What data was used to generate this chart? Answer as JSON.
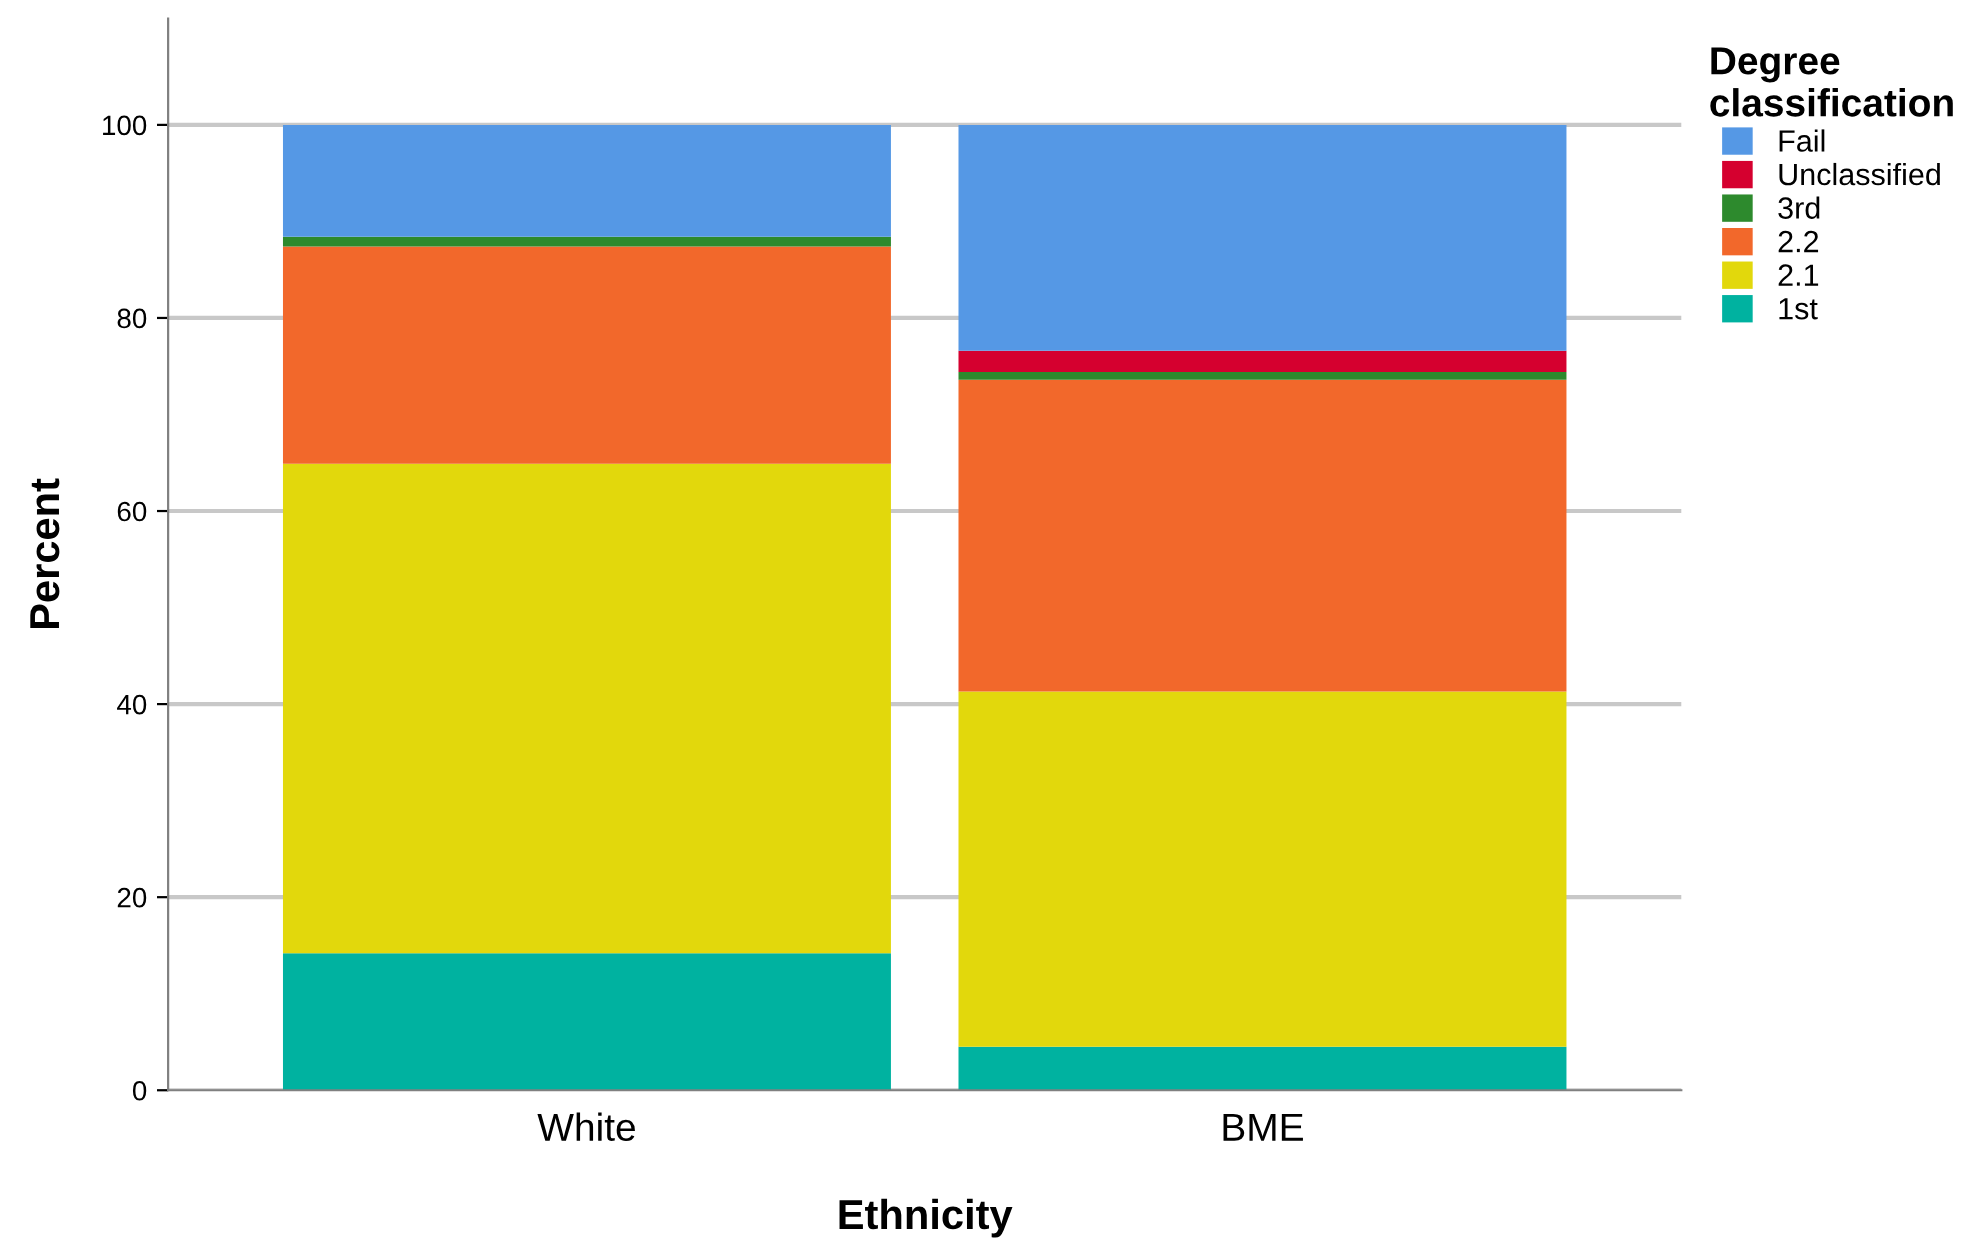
{
  "chart_data": {
    "type": "bar",
    "stacked": true,
    "xlabel": "Ethnicity",
    "ylabel": "Percent",
    "legend_title": "Degree\nclassification",
    "categories": [
      "White",
      "BME"
    ],
    "series": [
      {
        "name": "1st",
        "color": "#00b2a0",
        "values": [
          14.2,
          4.5
        ]
      },
      {
        "name": "2.1",
        "color": "#e2d80c",
        "values": [
          50.7,
          36.8
        ]
      },
      {
        "name": "2.2",
        "color": "#f2682b",
        "values": [
          22.5,
          32.3
        ]
      },
      {
        "name": "3rd",
        "color": "#2d8a2d",
        "values": [
          1.0,
          0.8
        ]
      },
      {
        "name": "Unclassified",
        "color": "#d5002f",
        "values": [
          0,
          2.2
        ]
      },
      {
        "name": "Fail",
        "color": "#5598e5",
        "values": [
          11.6,
          23.4
        ]
      }
    ],
    "ylim": [
      0,
      111
    ],
    "yticks": [
      0,
      20,
      40,
      60,
      80,
      100
    ],
    "grid": "y",
    "legend": "top right"
  }
}
